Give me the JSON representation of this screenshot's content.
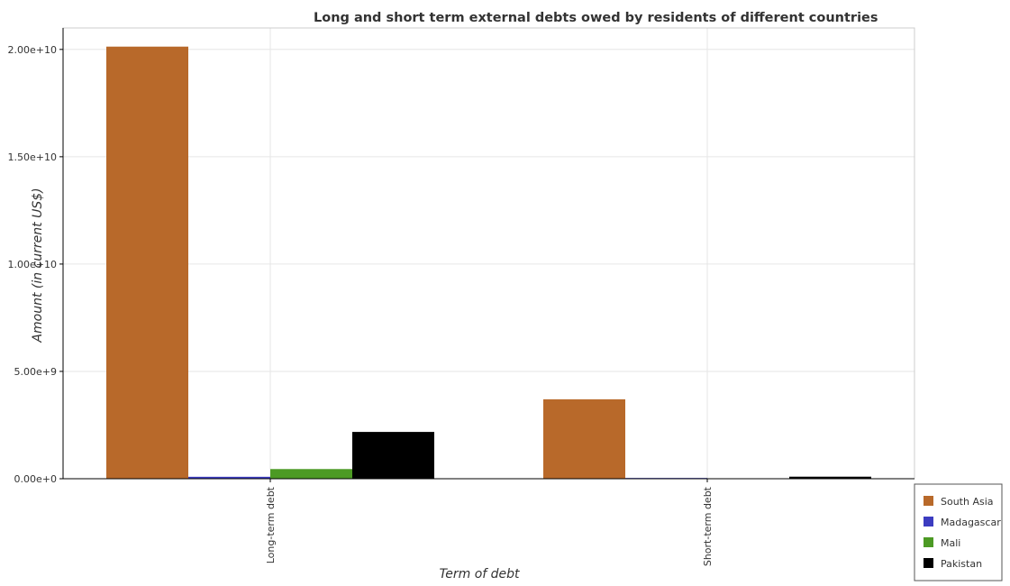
{
  "chart_data": {
    "type": "bar",
    "title": "Long and short term external debts owed by residents of different countries",
    "xlabel": "Term of debt",
    "ylabel": "Amount (in current US$)",
    "categories": [
      "Long-term debt",
      "Short-term debt"
    ],
    "ylim": [
      0,
      21000000000
    ],
    "yticks": [
      0,
      5000000000,
      10000000000,
      15000000000,
      20000000000
    ],
    "ytick_labels": [
      "0.00e+0",
      "5.00e+9",
      "1.00e+10",
      "1.50e+10",
      "2.00e+10"
    ],
    "grid": true,
    "legend_position": "bottom-right",
    "series": [
      {
        "name": "South Asia",
        "color": "#b8692a",
        "values": [
          20130000000,
          3700000000
        ]
      },
      {
        "name": "Madagascar",
        "color": "#3c3cc0",
        "values": [
          90000000,
          35000000
        ]
      },
      {
        "name": "Mali",
        "color": "#4c9a24",
        "values": [
          450000000,
          15000000
        ]
      },
      {
        "name": "Pakistan",
        "color": "#000000",
        "values": [
          2180000000,
          95000000
        ]
      }
    ]
  }
}
